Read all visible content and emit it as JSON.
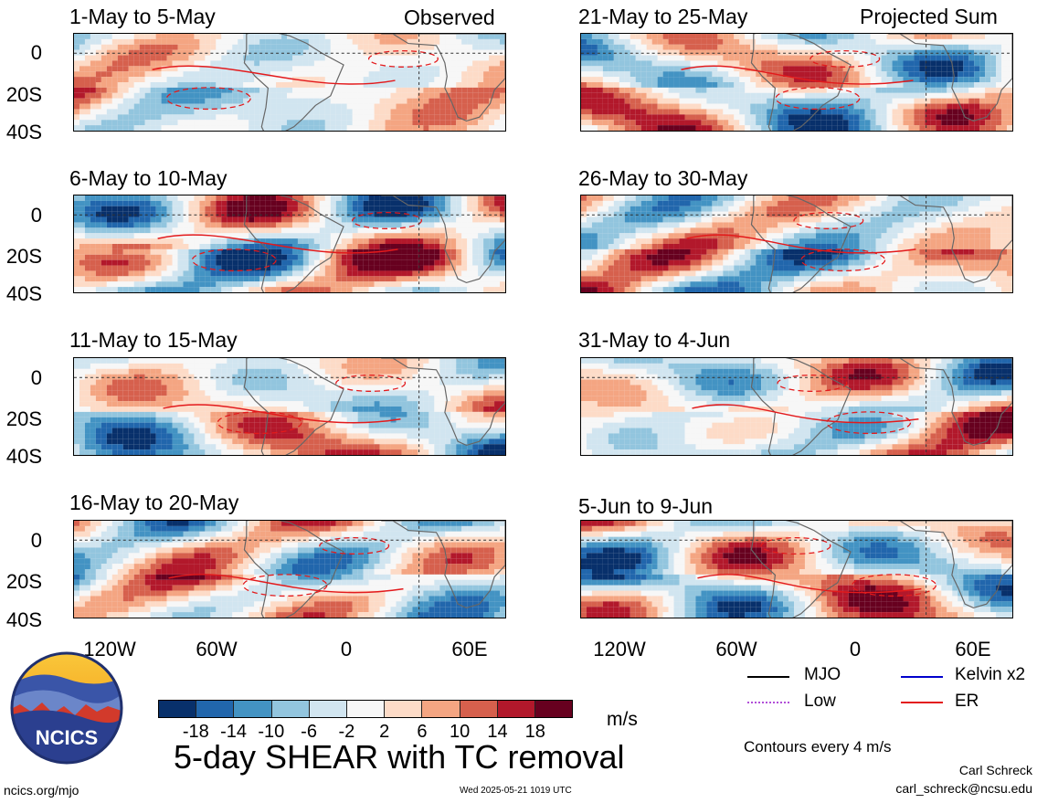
{
  "header": {
    "observed_label": "Observed",
    "projected_label": "Projected Sum"
  },
  "chart_data": {
    "type": "heatmap",
    "title": "5-day SHEAR with TC removal",
    "units": "m/s",
    "y_ticks": [
      "0",
      "20S",
      "40S"
    ],
    "x_ticks": [
      "120W",
      "60W",
      "0",
      "60E"
    ],
    "lon_range": [
      -160,
      40
    ],
    "lat_range": [
      -40,
      10
    ],
    "panels": [
      {
        "period": "1-May to 5-May",
        "group": "Observed"
      },
      {
        "period": "6-May to 10-May",
        "group": "Observed"
      },
      {
        "period": "11-May to 15-May",
        "group": "Observed"
      },
      {
        "period": "16-May to 20-May",
        "group": "Observed"
      },
      {
        "period": "21-May to 25-May",
        "group": "Projected Sum"
      },
      {
        "period": "26-May to 30-May",
        "group": "Projected Sum"
      },
      {
        "period": "31-May to 4-Jun",
        "group": "Projected Sum"
      },
      {
        "period": "5-Jun to 9-Jun",
        "group": "Projected Sum"
      }
    ],
    "colorbar": {
      "ticks": [
        "-18",
        "-14",
        "-10",
        "-6",
        "-2",
        "2",
        "6",
        "10",
        "14",
        "18"
      ],
      "colors": [
        "#08306b",
        "#2166ac",
        "#4393c3",
        "#92c5de",
        "#d1e5f0",
        "#f7f7f7",
        "#fddbc7",
        "#f4a582",
        "#d6604d",
        "#b2182b",
        "#67001f"
      ]
    },
    "legend": [
      {
        "label": "MJO",
        "color": "#000000"
      },
      {
        "label": "Kelvin x2",
        "color": "#0000cc"
      },
      {
        "label": "Low",
        "color": "#b14fd8"
      },
      {
        "label": "ER",
        "color": "#e31a1c"
      }
    ],
    "contour_note": "Contours every 4 m/s"
  },
  "footer": {
    "logo_text": "NCICS",
    "site": "ncics.org/mjo",
    "timestamp": "Wed 2025-05-21 1019 UTC",
    "author": "Carl Schreck",
    "email": "carl_schreck@ncsu.edu"
  }
}
